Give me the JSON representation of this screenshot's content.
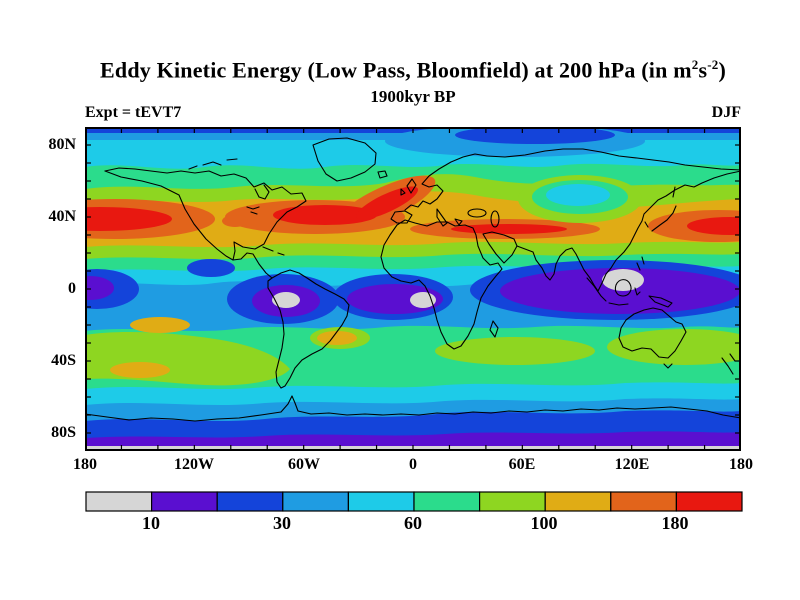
{
  "header": {
    "title_prefix": "Eddy Kinetic Energy (Low Pass, Bloomfield) at 200 hPa (in m",
    "title_sup_a": "2",
    "title_mid": "s",
    "title_sup_b": "-2",
    "title_suffix": ")",
    "subtitle": "1900kyr BP",
    "left_label": "Expt = tEVT7",
    "right_label": "DJF"
  },
  "chart_data": {
    "type": "heatmap",
    "subtype": "filled-contour world map (equirectangular, 0E centered)",
    "title": "Eddy Kinetic Energy (Low Pass, Bloomfield) at 200 hPa (in m2s-2)",
    "subtitle": "1900kyr BP",
    "experiment": "Expt = tEVT7",
    "season": "DJF",
    "x_tick_labels": [
      "180",
      "120W",
      "60W",
      "0",
      "60E",
      "120E",
      "180"
    ],
    "y_tick_labels": [
      "80N",
      "40N",
      "0",
      "40S",
      "80S"
    ],
    "lon_range_deg": [
      -180,
      180
    ],
    "lat_range_deg": [
      -90,
      90
    ],
    "minor_tick_spacing": {
      "lon_deg": 20,
      "lat_deg": 10
    },
    "grid": false,
    "colorbar": {
      "orientation": "horizontal",
      "labels": [
        "10",
        "30",
        "60",
        "100",
        "180"
      ],
      "labeled_boundary_indices": [
        1,
        3,
        5,
        7,
        9
      ],
      "segment_colors": [
        "#d6d6d6",
        "#5a0fd0",
        "#1444da",
        "#1f9ce2",
        "#1ecbe8",
        "#2bdc8c",
        "#8ed621",
        "#e0ac15",
        "#e2641b",
        "#e81810"
      ],
      "segment_meaning": "10 filled-contour bins from below 10 (gray) to above 180 (red)"
    },
    "features": [
      {
        "feature": "storm-track maximum",
        "location": "North Pacific ~35-45N near date line (left edge)",
        "band": ">180"
      },
      {
        "feature": "storm-track maximum",
        "location": "eastern North America / North Atlantic ~35-50N, tilting NE toward UK",
        "band": ">180"
      },
      {
        "feature": "subtropical jet maximum",
        "location": "North Africa / Middle East ~30-35N",
        "band": ">180"
      },
      {
        "feature": "jet maximum",
        "location": "East Asia / NW Pacific ~35-45N (right edge)",
        "band": ">180"
      },
      {
        "feature": "minimum",
        "location": "equatorial South America (Amazon)",
        "band": "<10"
      },
      {
        "feature": "minimum",
        "location": "equatorial Atlantic / West Africa",
        "band": "<10"
      },
      {
        "feature": "minimum",
        "location": "Maritime Continent (Borneo)",
        "band": "<10"
      },
      {
        "feature": "tropical minimum belt",
        "location": "~10N-15S, all longitudes",
        "band": "10-30 (purple/blue)"
      },
      {
        "feature": "southern storm track",
        "location": "30-50S circumpolar",
        "band": "60-140 (green/yellow-green with gold patches)"
      },
      {
        "feature": "polar minimum",
        "location": "Antarctica 70-90S",
        "band": "<30, gray strip at southern map edge"
      },
      {
        "feature": "arctic relative minimum",
        "location": "80-90N",
        "band": "20-45 (blue/cyan)"
      }
    ]
  }
}
